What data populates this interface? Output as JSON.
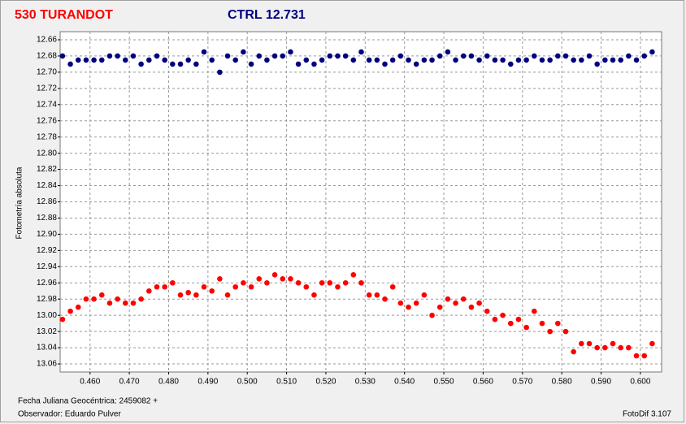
{
  "chart_data": {
    "type": "scatter",
    "ylabel": "Fotometría absoluta",
    "xlabel": "Fecha Juliana Geocéntrica: 2459082 +",
    "note": "Observador: Eduardo Pulver",
    "software": "FotoDif 3.107",
    "y_inverted": true,
    "grid": true,
    "xlim": [
      0.4524,
      0.6054
    ],
    "ylim": [
      12.65,
      13.07
    ],
    "xticks": [
      {
        "value": 0.46,
        "label": "0.460"
      },
      {
        "value": 0.47,
        "label": "0.470"
      },
      {
        "value": 0.48,
        "label": "0.480"
      },
      {
        "value": 0.49,
        "label": "0.490"
      },
      {
        "value": 0.5,
        "label": "0.500"
      },
      {
        "value": 0.51,
        "label": "0.510"
      },
      {
        "value": 0.52,
        "label": "0.520"
      },
      {
        "value": 0.53,
        "label": "0.530"
      },
      {
        "value": 0.54,
        "label": "0.540"
      },
      {
        "value": 0.55,
        "label": "0.550"
      },
      {
        "value": 0.56,
        "label": "0.560"
      },
      {
        "value": 0.57,
        "label": "0.570"
      },
      {
        "value": 0.58,
        "label": "0.580"
      },
      {
        "value": 0.59,
        "label": "0.590"
      },
      {
        "value": 0.6,
        "label": "0.600"
      }
    ],
    "yticks": [
      {
        "value": 12.66,
        "label": "12.66"
      },
      {
        "value": 12.68,
        "label": "12.68"
      },
      {
        "value": 12.7,
        "label": "12.70"
      },
      {
        "value": 12.72,
        "label": "12.72"
      },
      {
        "value": 12.74,
        "label": "12.74"
      },
      {
        "value": 12.76,
        "label": "12.76"
      },
      {
        "value": 12.78,
        "label": "12.78"
      },
      {
        "value": 12.8,
        "label": "12.80"
      },
      {
        "value": 12.82,
        "label": "12.82"
      },
      {
        "value": 12.84,
        "label": "12.84"
      },
      {
        "value": 12.86,
        "label": "12.86"
      },
      {
        "value": 12.88,
        "label": "12.88"
      },
      {
        "value": 12.9,
        "label": "12.90"
      },
      {
        "value": 12.92,
        "label": "12.92"
      },
      {
        "value": 12.94,
        "label": "12.94"
      },
      {
        "value": 12.96,
        "label": "12.96"
      },
      {
        "value": 12.98,
        "label": "12.98"
      },
      {
        "value": 13.0,
        "label": "13.00"
      },
      {
        "value": 13.02,
        "label": "13.02"
      },
      {
        "value": 13.04,
        "label": "13.04"
      },
      {
        "value": 13.06,
        "label": "13.06"
      }
    ],
    "x": [
      0.453,
      0.455,
      0.457,
      0.459,
      0.461,
      0.463,
      0.465,
      0.467,
      0.469,
      0.471,
      0.473,
      0.475,
      0.477,
      0.479,
      0.481,
      0.483,
      0.485,
      0.487,
      0.489,
      0.491,
      0.493,
      0.495,
      0.497,
      0.499,
      0.501,
      0.503,
      0.505,
      0.507,
      0.509,
      0.511,
      0.513,
      0.515,
      0.517,
      0.519,
      0.521,
      0.523,
      0.525,
      0.527,
      0.529,
      0.531,
      0.533,
      0.535,
      0.537,
      0.539,
      0.541,
      0.543,
      0.545,
      0.547,
      0.549,
      0.551,
      0.553,
      0.555,
      0.557,
      0.559,
      0.561,
      0.563,
      0.565,
      0.567,
      0.569,
      0.571,
      0.573,
      0.575,
      0.577,
      0.579,
      0.581,
      0.583,
      0.585,
      0.587,
      0.589,
      0.591,
      0.593,
      0.595,
      0.597,
      0.599,
      0.601,
      0.603
    ],
    "series": [
      {
        "name": "530 TURANDOT",
        "color": "#ff0000",
        "values": [
          13.005,
          12.995,
          12.99,
          12.98,
          12.98,
          12.975,
          12.985,
          12.98,
          12.985,
          12.985,
          12.98,
          12.97,
          12.965,
          12.965,
          12.96,
          12.975,
          12.972,
          12.975,
          12.965,
          12.97,
          12.955,
          12.975,
          12.965,
          12.96,
          12.965,
          12.955,
          12.96,
          12.95,
          12.955,
          12.955,
          12.96,
          12.965,
          12.975,
          12.96,
          12.96,
          12.965,
          12.96,
          12.95,
          12.96,
          12.975,
          12.975,
          12.98,
          12.965,
          12.985,
          12.99,
          12.985,
          12.975,
          13.0,
          12.99,
          12.98,
          12.985,
          12.98,
          12.99,
          12.985,
          12.995,
          13.005,
          13.0,
          13.01,
          13.005,
          13.015,
          12.995,
          13.01,
          13.02,
          13.01,
          13.02,
          13.045,
          13.035,
          13.035,
          13.04,
          13.04,
          13.035,
          13.04,
          13.04,
          13.05,
          13.05,
          13.035
        ]
      },
      {
        "name": "CTRL 12.731",
        "color": "#000080",
        "values": [
          12.68,
          12.69,
          12.685,
          12.685,
          12.685,
          12.685,
          12.68,
          12.68,
          12.685,
          12.68,
          12.69,
          12.685,
          12.68,
          12.685,
          12.69,
          12.69,
          12.685,
          12.69,
          12.675,
          12.685,
          12.7,
          12.68,
          12.685,
          12.675,
          12.69,
          12.68,
          12.685,
          12.68,
          12.68,
          12.675,
          12.69,
          12.685,
          12.69,
          12.685,
          12.68,
          12.68,
          12.68,
          12.685,
          12.675,
          12.685,
          12.685,
          12.69,
          12.685,
          12.68,
          12.685,
          12.69,
          12.685,
          12.685,
          12.68,
          12.675,
          12.685,
          12.68,
          12.68,
          12.685,
          12.68,
          12.685,
          12.685,
          12.69,
          12.685,
          12.685,
          12.68,
          12.685,
          12.685,
          12.68,
          12.68,
          12.685,
          12.685,
          12.68,
          12.69,
          12.685,
          12.685,
          12.685,
          12.68,
          12.685,
          12.68,
          12.675
        ]
      }
    ]
  }
}
